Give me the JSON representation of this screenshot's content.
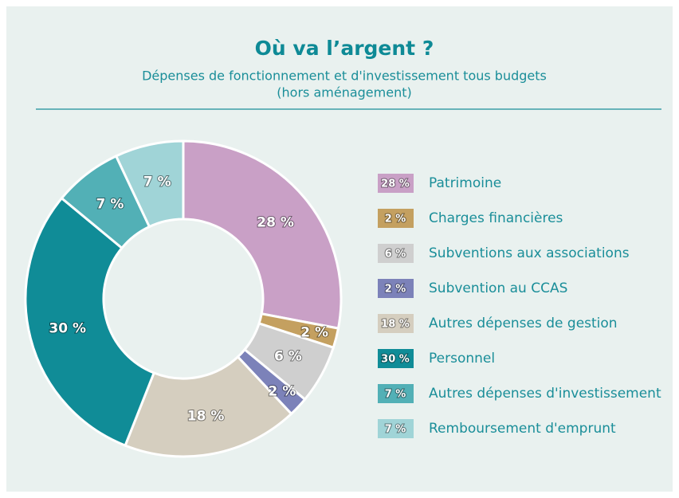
{
  "chart_data": {
    "type": "donut",
    "title": "Où va l’argent ?",
    "subtitle": [
      "Dépenses de fonctionnement et d'investissement tous budgets",
      "(hors aménagement)"
    ],
    "categories": [
      "Patrimoine",
      "Charges financières",
      "Subventions aux associations",
      "Subvention au CCAS",
      "Autres dépenses de gestion",
      "Personnel",
      "Autres dépenses d'investissement",
      "Remboursement d'emprunt"
    ],
    "values": [
      28,
      2,
      6,
      2,
      18,
      30,
      7,
      7
    ],
    "value_labels": [
      "28 %",
      "2 %",
      "6 %",
      "2 %",
      "18 %",
      "30 %",
      "7 %",
      "7 %"
    ],
    "colors": [
      "#c9a0c6",
      "#c4a060",
      "#cfcfcf",
      "#7c82b9",
      "#d5cebf",
      "#108c97",
      "#52b0b6",
      "#a0d4d7"
    ],
    "legend": "right"
  }
}
